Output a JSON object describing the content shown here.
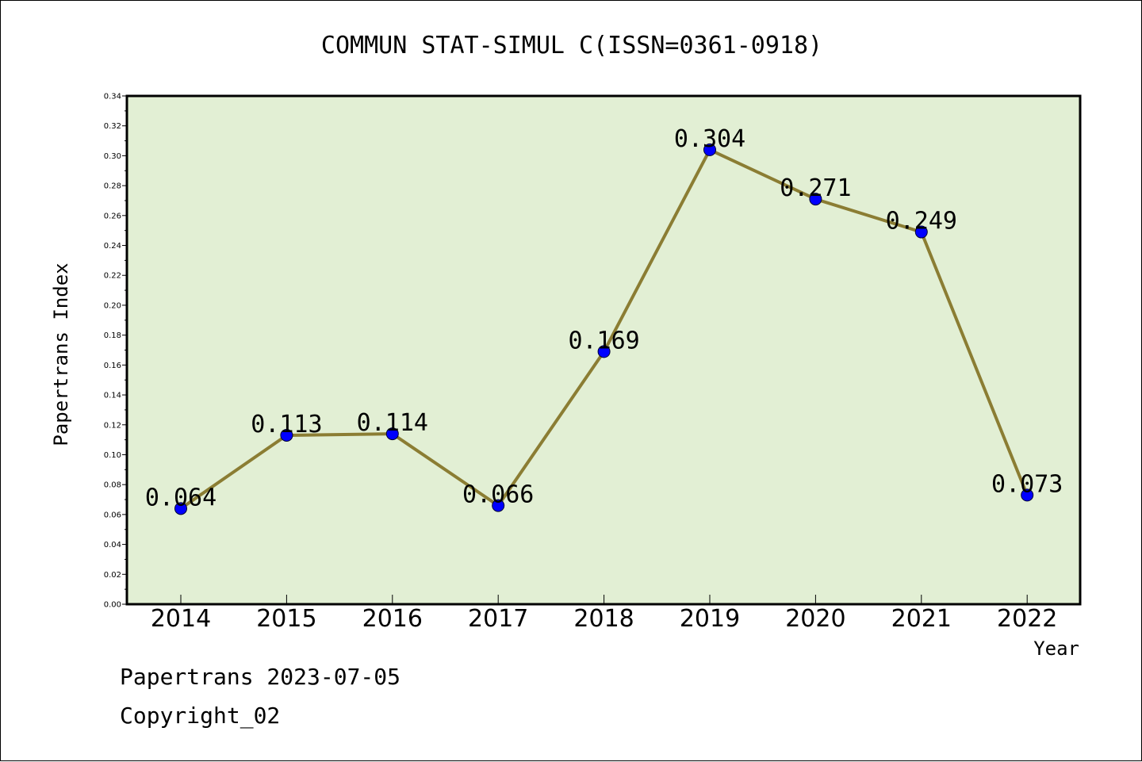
{
  "chart_data": {
    "type": "line",
    "title": "COMMUN STAT-SIMUL C(ISSN=0361-0918)",
    "xlabel": "Year",
    "ylabel": "Papertrans Index",
    "categories": [
      "2014",
      "2015",
      "2016",
      "2017",
      "2018",
      "2019",
      "2020",
      "2021",
      "2022"
    ],
    "values": [
      0.064,
      0.113,
      0.114,
      0.066,
      0.169,
      0.304,
      0.271,
      0.249,
      0.073
    ],
    "data_labels": [
      "0.064",
      "0.113",
      "0.114",
      "0.066",
      "0.169",
      "0.304",
      "0.271",
      "0.249",
      "0.073"
    ],
    "ylim": [
      0,
      0.34
    ],
    "yticks": [
      "0.00",
      "0.02",
      "0.04",
      "0.06",
      "0.08",
      "0.10",
      "0.12",
      "0.14",
      "0.16",
      "0.18",
      "0.20",
      "0.22",
      "0.24",
      "0.26",
      "0.28",
      "0.30",
      "0.32",
      "0.34"
    ],
    "grid": false,
    "colors": {
      "plot_background": "#e2efd4",
      "line": "#8b7d33",
      "marker": "#0000ff"
    }
  },
  "footer": {
    "line1": "Papertrans 2023-07-05",
    "line2": "Copyright_02"
  }
}
